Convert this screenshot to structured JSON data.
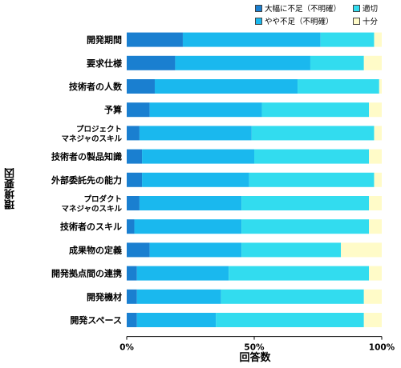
{
  "chart_data": {
    "type": "bar",
    "orientation": "horizontal",
    "stacked": true,
    "percent": true,
    "xlabel": "回答数",
    "ylabel": "環境要因",
    "xlim": [
      0,
      100
    ],
    "xticks": [
      "0%",
      "50%",
      "100%"
    ],
    "legend_position": "top-right",
    "categories": [
      [
        "開発期間"
      ],
      [
        "要求仕様"
      ],
      [
        "技術者の人数"
      ],
      [
        "予算"
      ],
      [
        "プロジェクト",
        "マネジャのスキル"
      ],
      [
        "技術者の製品知識"
      ],
      [
        "外部委託先の能力"
      ],
      [
        "プロダクト",
        "マネジャのスキル"
      ],
      [
        "技術者のスキル"
      ],
      [
        "成果物の定義"
      ],
      [
        "開発拠点間の連携"
      ],
      [
        "開発機材"
      ],
      [
        "開発スペース"
      ]
    ],
    "series": [
      {
        "name": "大幅に不足（不明確）",
        "color": "#1a7fd0",
        "values": [
          22,
          19,
          11,
          9,
          5,
          6,
          6,
          5,
          3,
          9,
          4,
          4,
          4
        ]
      },
      {
        "name": "やや不足（不明確）",
        "color": "#1ab8ee",
        "values": [
          54,
          53,
          56,
          44,
          44,
          44,
          42,
          40,
          42,
          36,
          36,
          33,
          31
        ]
      },
      {
        "name": "適切",
        "color": "#32dcef",
        "values": [
          21,
          21,
          32,
          42,
          48,
          45,
          49,
          50,
          50,
          39,
          55,
          56,
          58
        ]
      },
      {
        "name": "十分",
        "color": "#fffbc8",
        "values": [
          3,
          7,
          1,
          5,
          3,
          5,
          3,
          5,
          5,
          16,
          5,
          7,
          7
        ]
      }
    ]
  }
}
